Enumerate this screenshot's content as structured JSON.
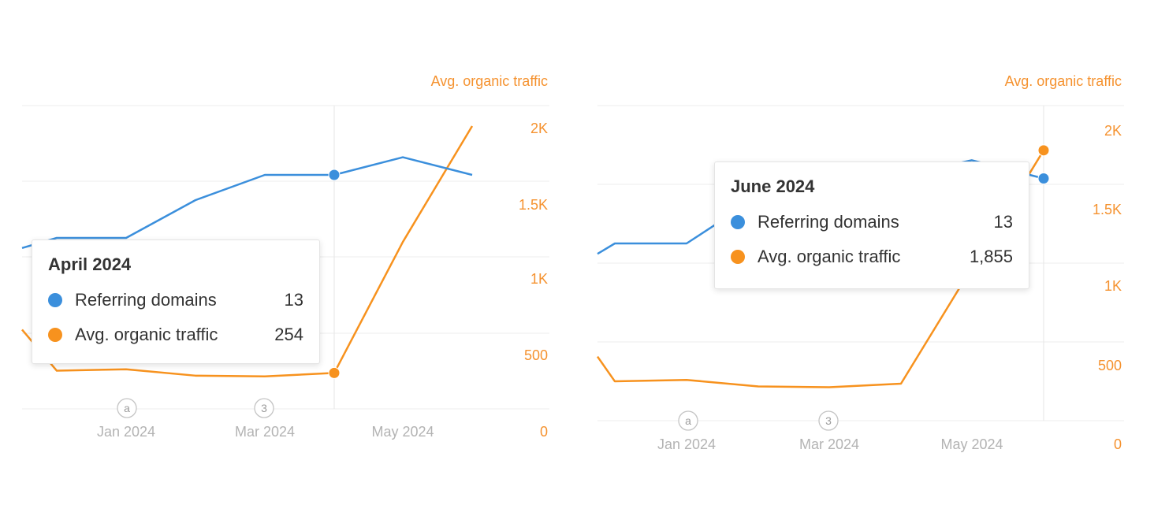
{
  "chart_data": [
    {
      "type": "line",
      "y2_title": "Avg. organic traffic",
      "y2_ticks": [
        "0",
        "500",
        "1K",
        "1.5K",
        "2K"
      ],
      "y2_lim": [
        0,
        2000
      ],
      "x_ticks": [
        "Jan 2024",
        "Mar 2024",
        "May 2024"
      ],
      "annotations": [
        "a",
        "3"
      ],
      "grid": true,
      "series": [
        {
          "name": "Referring domains",
          "color": "#3b8fdc",
          "values": [
            9,
            10,
            10,
            10,
            12,
            12.5,
            12.5,
            13,
            12.5
          ]
        },
        {
          "name": "Avg. organic traffic",
          "color": "#f7921e",
          "values": [
            560,
            270,
            280,
            235,
            230,
            254,
            1180,
            2000
          ]
        }
      ],
      "tooltip": {
        "title": "April 2024",
        "rows": [
          {
            "name": "Referring domains",
            "value": "13",
            "color": "#3b8fdc"
          },
          {
            "name": "Avg. organic traffic",
            "value": "254",
            "color": "#f7921e"
          }
        ]
      }
    },
    {
      "type": "line",
      "y2_title": "Avg. organic traffic",
      "y2_ticks": [
        "0",
        "500",
        "1K",
        "1.5K",
        "2K"
      ],
      "y2_lim": [
        0,
        2000
      ],
      "x_ticks": [
        "Jan 2024",
        "Mar 2024",
        "May 2024"
      ],
      "annotations": [
        "a",
        "3"
      ],
      "grid": true,
      "series": [
        {
          "name": "Referring domains",
          "color": "#3b8fdc",
          "values": [
            9,
            10,
            10,
            10,
            12,
            12.5,
            12.5,
            13,
            12.5
          ]
        },
        {
          "name": "Avg. organic traffic",
          "color": "#f7921e",
          "values": [
            440,
            270,
            280,
            235,
            230,
            254,
            1180,
            1855
          ]
        }
      ],
      "tooltip": {
        "title": "June 2024",
        "rows": [
          {
            "name": "Referring domains",
            "value": "13",
            "color": "#3b8fdc"
          },
          {
            "name": "Avg. organic traffic",
            "value": "1,855",
            "color": "#f7921e"
          }
        ]
      }
    }
  ]
}
